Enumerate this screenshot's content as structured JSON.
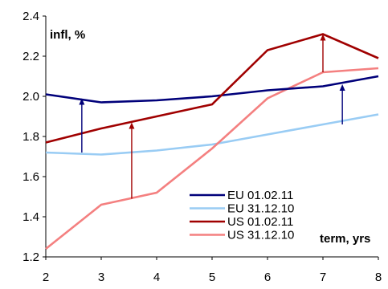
{
  "chart_data": {
    "type": "line",
    "ylabel": "infl, %",
    "xlabel": "term, yrs",
    "x": [
      2,
      3,
      4,
      5,
      6,
      7,
      8
    ],
    "xlim": [
      2,
      8
    ],
    "ylim": [
      1.2,
      2.4
    ],
    "y_ticks": [
      "1.2",
      "1.4",
      "1.6",
      "1.8",
      "2.0",
      "2.2",
      "2.4"
    ],
    "x_ticks": [
      "2",
      "3",
      "4",
      "5",
      "6",
      "7",
      "8"
    ],
    "grid": false,
    "legend_position": "bottom-right",
    "series": [
      {
        "name": "EU 01.02.11",
        "color": "#00007a",
        "values": [
          2.01,
          1.97,
          1.98,
          2.0,
          2.03,
          2.05,
          2.1
        ]
      },
      {
        "name": "EU 31.12.10",
        "color": "#99ccf4",
        "values": [
          1.72,
          1.71,
          1.73,
          1.76,
          1.81,
          1.86,
          1.91
        ]
      },
      {
        "name": "US 01.02.11",
        "color": "#a00000",
        "values": [
          1.77,
          1.84,
          1.9,
          1.96,
          2.23,
          2.31,
          2.19
        ]
      },
      {
        "name": "US 31.12.10",
        "color": "#f48080",
        "values": [
          1.24,
          1.46,
          1.52,
          1.74,
          1.99,
          2.12,
          2.14
        ]
      }
    ],
    "arrows": [
      {
        "x": 2.65,
        "from": 1.72,
        "to": 1.99,
        "color": "#00007a"
      },
      {
        "x": 3.55,
        "from": 1.49,
        "to": 1.87,
        "color": "#a00000"
      },
      {
        "x": 7.0,
        "from": 2.12,
        "to": 2.31,
        "color": "#a00000"
      },
      {
        "x": 7.35,
        "from": 1.86,
        "to": 2.06,
        "color": "#00007a"
      }
    ]
  }
}
